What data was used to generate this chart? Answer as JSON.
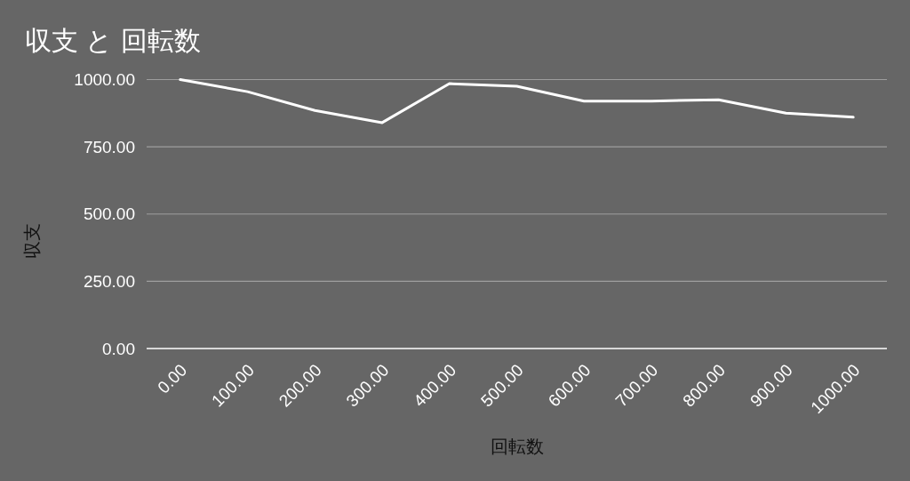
{
  "chart_data": {
    "type": "line",
    "title": "収支 と 回転数",
    "xlabel": "回転数",
    "ylabel": "収支",
    "categories": [
      "0.00",
      "100.00",
      "200.00",
      "300.00",
      "400.00",
      "500.00",
      "600.00",
      "700.00",
      "800.00",
      "900.00",
      "1000.00"
    ],
    "series": [
      {
        "color": "#ffffff",
        "values": [
          1000,
          955,
          885,
          840,
          985,
          975,
          920,
          920,
          925,
          875,
          860
        ]
      }
    ],
    "ylim": [
      0,
      1000
    ],
    "yticks": [
      {
        "value": 0,
        "label": "0.00"
      },
      {
        "value": 250,
        "label": "250.00"
      },
      {
        "value": 500,
        "label": "500.00"
      },
      {
        "value": 750,
        "label": "750.00"
      },
      {
        "value": 1000,
        "label": "1000.00"
      }
    ],
    "grid": "y",
    "line_style": "solid"
  }
}
